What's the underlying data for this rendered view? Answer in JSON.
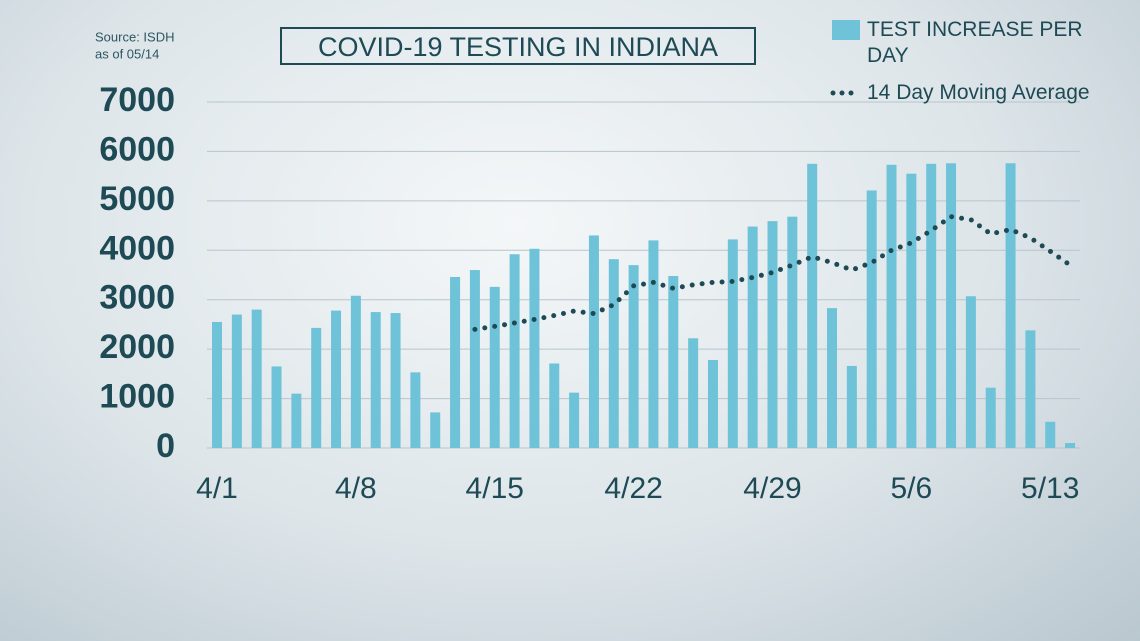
{
  "chart_data": {
    "type": "bar",
    "title": "COVID-19 TESTING IN INDIANA",
    "source": [
      "Source: ISDH",
      "as of 05/14"
    ],
    "categories": [
      "4/1",
      null,
      null,
      null,
      null,
      null,
      null,
      "4/8",
      null,
      null,
      null,
      null,
      null,
      null,
      "4/15",
      null,
      null,
      null,
      null,
      null,
      null,
      "4/22",
      null,
      null,
      null,
      null,
      null,
      null,
      "4/29",
      null,
      null,
      null,
      null,
      null,
      null,
      "5/6",
      null,
      null,
      null,
      null,
      null,
      null,
      "5/13",
      null
    ],
    "series": [
      {
        "name": "TEST INCREASE PER DAY",
        "type": "bar",
        "color": "#6ec3d9",
        "values": [
          2550,
          2700,
          2800,
          1650,
          1100,
          2430,
          2780,
          3080,
          2750,
          2730,
          1530,
          720,
          3460,
          3600,
          3260,
          3920,
          4030,
          1710,
          1120,
          4300,
          3820,
          3700,
          4200,
          3480,
          2220,
          1780,
          4220,
          4480,
          4590,
          4680,
          5750,
          2830,
          1660,
          5210,
          5730,
          5550,
          5750,
          5760,
          3070,
          1220,
          5760,
          2380,
          530,
          100
        ]
      },
      {
        "name": "14 Day Moving Average",
        "type": "line",
        "color": "#1e4a55",
        "values": [
          null,
          null,
          null,
          null,
          null,
          null,
          null,
          null,
          null,
          null,
          null,
          null,
          null,
          2400,
          2460,
          2530,
          2600,
          2680,
          2770,
          2720,
          2900,
          3280,
          3350,
          3230,
          3300,
          3350,
          3370,
          3450,
          3550,
          3700,
          3870,
          3750,
          3600,
          3750,
          4000,
          4150,
          4400,
          4680,
          4620,
          4330,
          4420,
          4250,
          3980,
          3700
        ]
      }
    ],
    "ylim": [
      0,
      7000
    ],
    "yticks": [
      0,
      1000,
      2000,
      3000,
      4000,
      5000,
      6000,
      7000
    ],
    "grid": true
  }
}
